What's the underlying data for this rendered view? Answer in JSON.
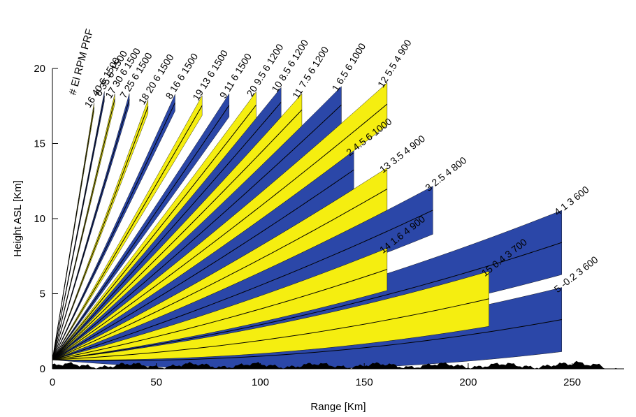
{
  "chart_data": {
    "type": "area",
    "title": "",
    "xlabel": "Range [Km]",
    "ylabel": "Height ASL [Km]",
    "xlim": [
      0,
      275
    ],
    "ylim": [
      0,
      20
    ],
    "xticks": [
      "0",
      "50",
      "100",
      "150",
      "200",
      "250"
    ],
    "yticks": [
      "0",
      "5",
      "10",
      "15",
      "20"
    ],
    "header": "# El  RPM  PRF",
    "colors": {
      "blue": "#2b47a8",
      "yellow": "#f5ee10",
      "terrain": "#000000"
    },
    "radar_height_km": 0.6,
    "beam_width_deg": 1.0,
    "beams": [
      {
        "label": "16 40 6 1500",
        "el": 40,
        "range": 20,
        "color": "yellow"
      },
      {
        "label": "6 35 6 1500",
        "el": 35,
        "range": 25,
        "color": "blue"
      },
      {
        "label": "17 30 6 1500",
        "el": 30,
        "range": 30,
        "color": "yellow"
      },
      {
        "label": "7 25 6 1500",
        "el": 25,
        "range": 37,
        "color": "blue"
      },
      {
        "label": "18 20 6 1500",
        "el": 20,
        "range": 46,
        "color": "yellow"
      },
      {
        "label": "8 16 6 1500",
        "el": 16,
        "range": 59,
        "color": "blue"
      },
      {
        "label": "19 13 6 1500",
        "el": 13,
        "range": 72,
        "color": "yellow"
      },
      {
        "label": "9 11 6 1500",
        "el": 11,
        "range": 85,
        "color": "blue"
      },
      {
        "label": "20 9.5 6 1200",
        "el": 9.5,
        "range": 98,
        "color": "yellow"
      },
      {
        "label": "10 8.5 6 1200",
        "el": 8.5,
        "range": 110,
        "color": "blue"
      },
      {
        "label": "11 7.5 6 1200",
        "el": 7.5,
        "range": 120,
        "color": "yellow"
      },
      {
        "label": "1 6.5 6 1000",
        "el": 6.5,
        "range": 139,
        "color": "blue"
      },
      {
        "label": "12 5.5 4 900",
        "el": 5.5,
        "range": 161,
        "color": "yellow"
      },
      {
        "label": "2 4.5 6 1000",
        "el": 4.5,
        "range": 145,
        "color": "blue"
      },
      {
        "label": "13 3.5 4 900",
        "el": 3.5,
        "range": 161,
        "color": "yellow"
      },
      {
        "label": "3 2.5 4 800",
        "el": 2.5,
        "range": 183,
        "color": "blue"
      },
      {
        "label": "14 1.6 4 900",
        "el": 1.6,
        "range": 161,
        "color": "yellow"
      },
      {
        "label": "4 1 3 600",
        "el": 1.0,
        "range": 245,
        "color": "blue"
      },
      {
        "label": "15 0.4 3 700",
        "el": 0.4,
        "range": 210,
        "color": "yellow"
      },
      {
        "label": "5 -0.2 3 600",
        "el": -0.2,
        "range": 245,
        "color": "blue"
      }
    ]
  }
}
